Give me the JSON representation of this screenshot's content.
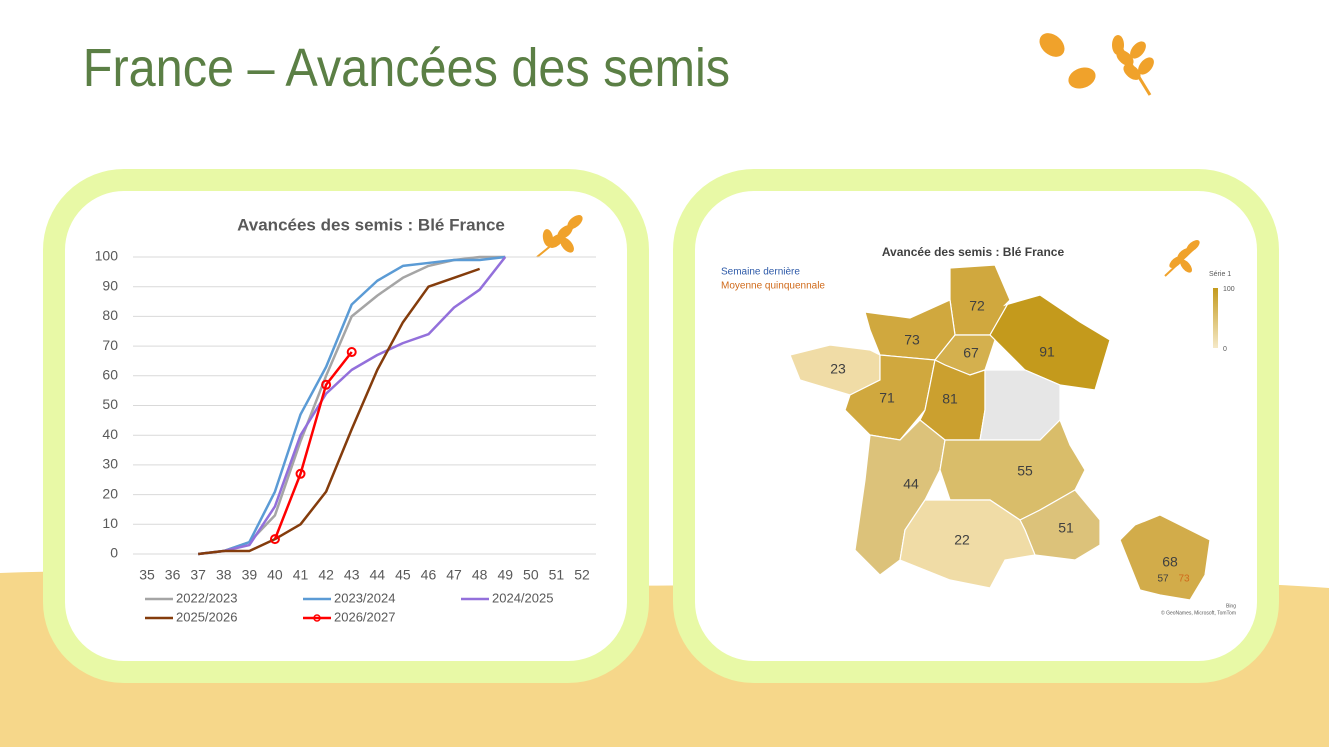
{
  "header": {
    "title": "France – Avancées des semis"
  },
  "chart_data": {
    "type": "line",
    "title": "Avancées des semis : Blé France",
    "x": [
      35,
      36,
      37,
      38,
      39,
      40,
      41,
      42,
      43,
      44,
      45,
      46,
      47,
      48,
      49,
      50,
      51,
      52
    ],
    "xlim": [
      35,
      52
    ],
    "ylim": [
      0,
      100
    ],
    "yticks": [
      0,
      10,
      20,
      30,
      40,
      50,
      60,
      70,
      80,
      90,
      100
    ],
    "grid": true,
    "series": [
      {
        "name": "2022/2023",
        "color": "#a5a5a5",
        "values": [
          null,
          null,
          0,
          1,
          4,
          13,
          38,
          60,
          80,
          87,
          93,
          97,
          99,
          100,
          100,
          null,
          null,
          null
        ]
      },
      {
        "name": "2023/2024",
        "color": "#5b9bd5",
        "values": [
          null,
          null,
          0,
          1,
          4,
          21,
          47,
          63,
          84,
          92,
          97,
          98,
          99,
          99,
          100,
          null,
          null,
          null
        ]
      },
      {
        "name": "2024/2025",
        "color": "#9370db",
        "values": [
          null,
          null,
          0,
          1,
          3,
          16,
          40,
          54,
          62,
          67,
          71,
          74,
          83,
          89,
          100,
          null,
          null,
          null
        ]
      },
      {
        "name": "2025/2026",
        "color": "#843c0c",
        "values": [
          null,
          null,
          0,
          1,
          1,
          5,
          10,
          21,
          42,
          62,
          78,
          90,
          93,
          96,
          null,
          null,
          null,
          null
        ]
      },
      {
        "name": "2026/2027",
        "color": "#ff0000",
        "markers": true,
        "values": [
          null,
          null,
          null,
          null,
          null,
          5,
          27,
          57,
          68,
          null,
          null,
          null,
          null,
          null,
          null,
          null,
          null,
          null
        ]
      }
    ]
  },
  "map": {
    "title": "Avancée des semis : Blé France",
    "legend": {
      "last_week": "Semaine dernière",
      "five_year_avg": "Moyenne quinquennale"
    },
    "scale": {
      "title": "Série 1",
      "max": "100",
      "min": "0"
    },
    "regions": [
      72,
      73,
      67,
      91,
      23,
      71,
      81,
      44,
      55,
      51,
      22
    ],
    "inset": {
      "value": 68,
      "last_week": 57,
      "five_year_avg": 73
    },
    "credits": [
      "Bing",
      "© GeoNames, Microsoft, TomTom"
    ]
  }
}
